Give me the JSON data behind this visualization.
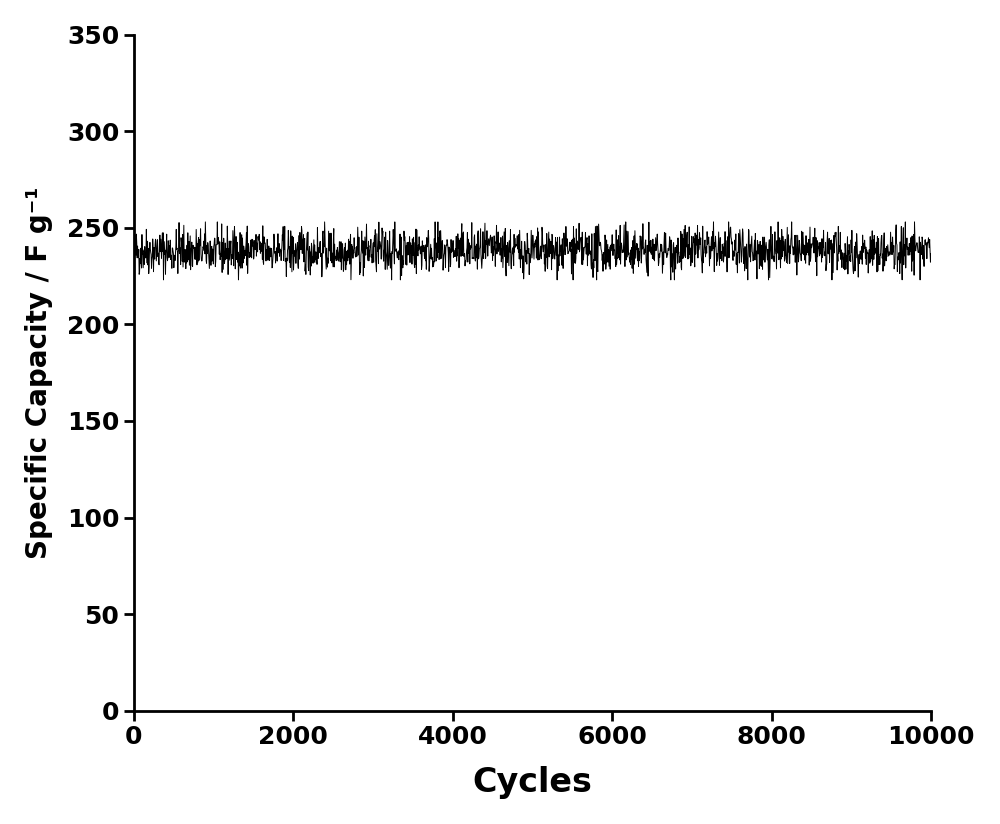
{
  "xlabel": "Cycles",
  "ylabel": "Specific Capacity / F g⁻¹",
  "xlim": [
    0,
    10000
  ],
  "ylim": [
    0,
    350
  ],
  "xticks": [
    0,
    2000,
    4000,
    6000,
    8000,
    10000
  ],
  "yticks": [
    0,
    50,
    100,
    150,
    200,
    250,
    300,
    350
  ],
  "mean_value": 238.0,
  "noise_amplitude": 6.0,
  "n_points": 2000,
  "line_color": "#000000",
  "line_width": 0.7,
  "background_color": "#ffffff",
  "xlabel_fontsize": 24,
  "ylabel_fontsize": 20,
  "tick_fontsize": 18,
  "xlabel_fontweight": "bold",
  "ylabel_fontweight": "bold",
  "tick_fontweight": "bold",
  "seed": 42
}
